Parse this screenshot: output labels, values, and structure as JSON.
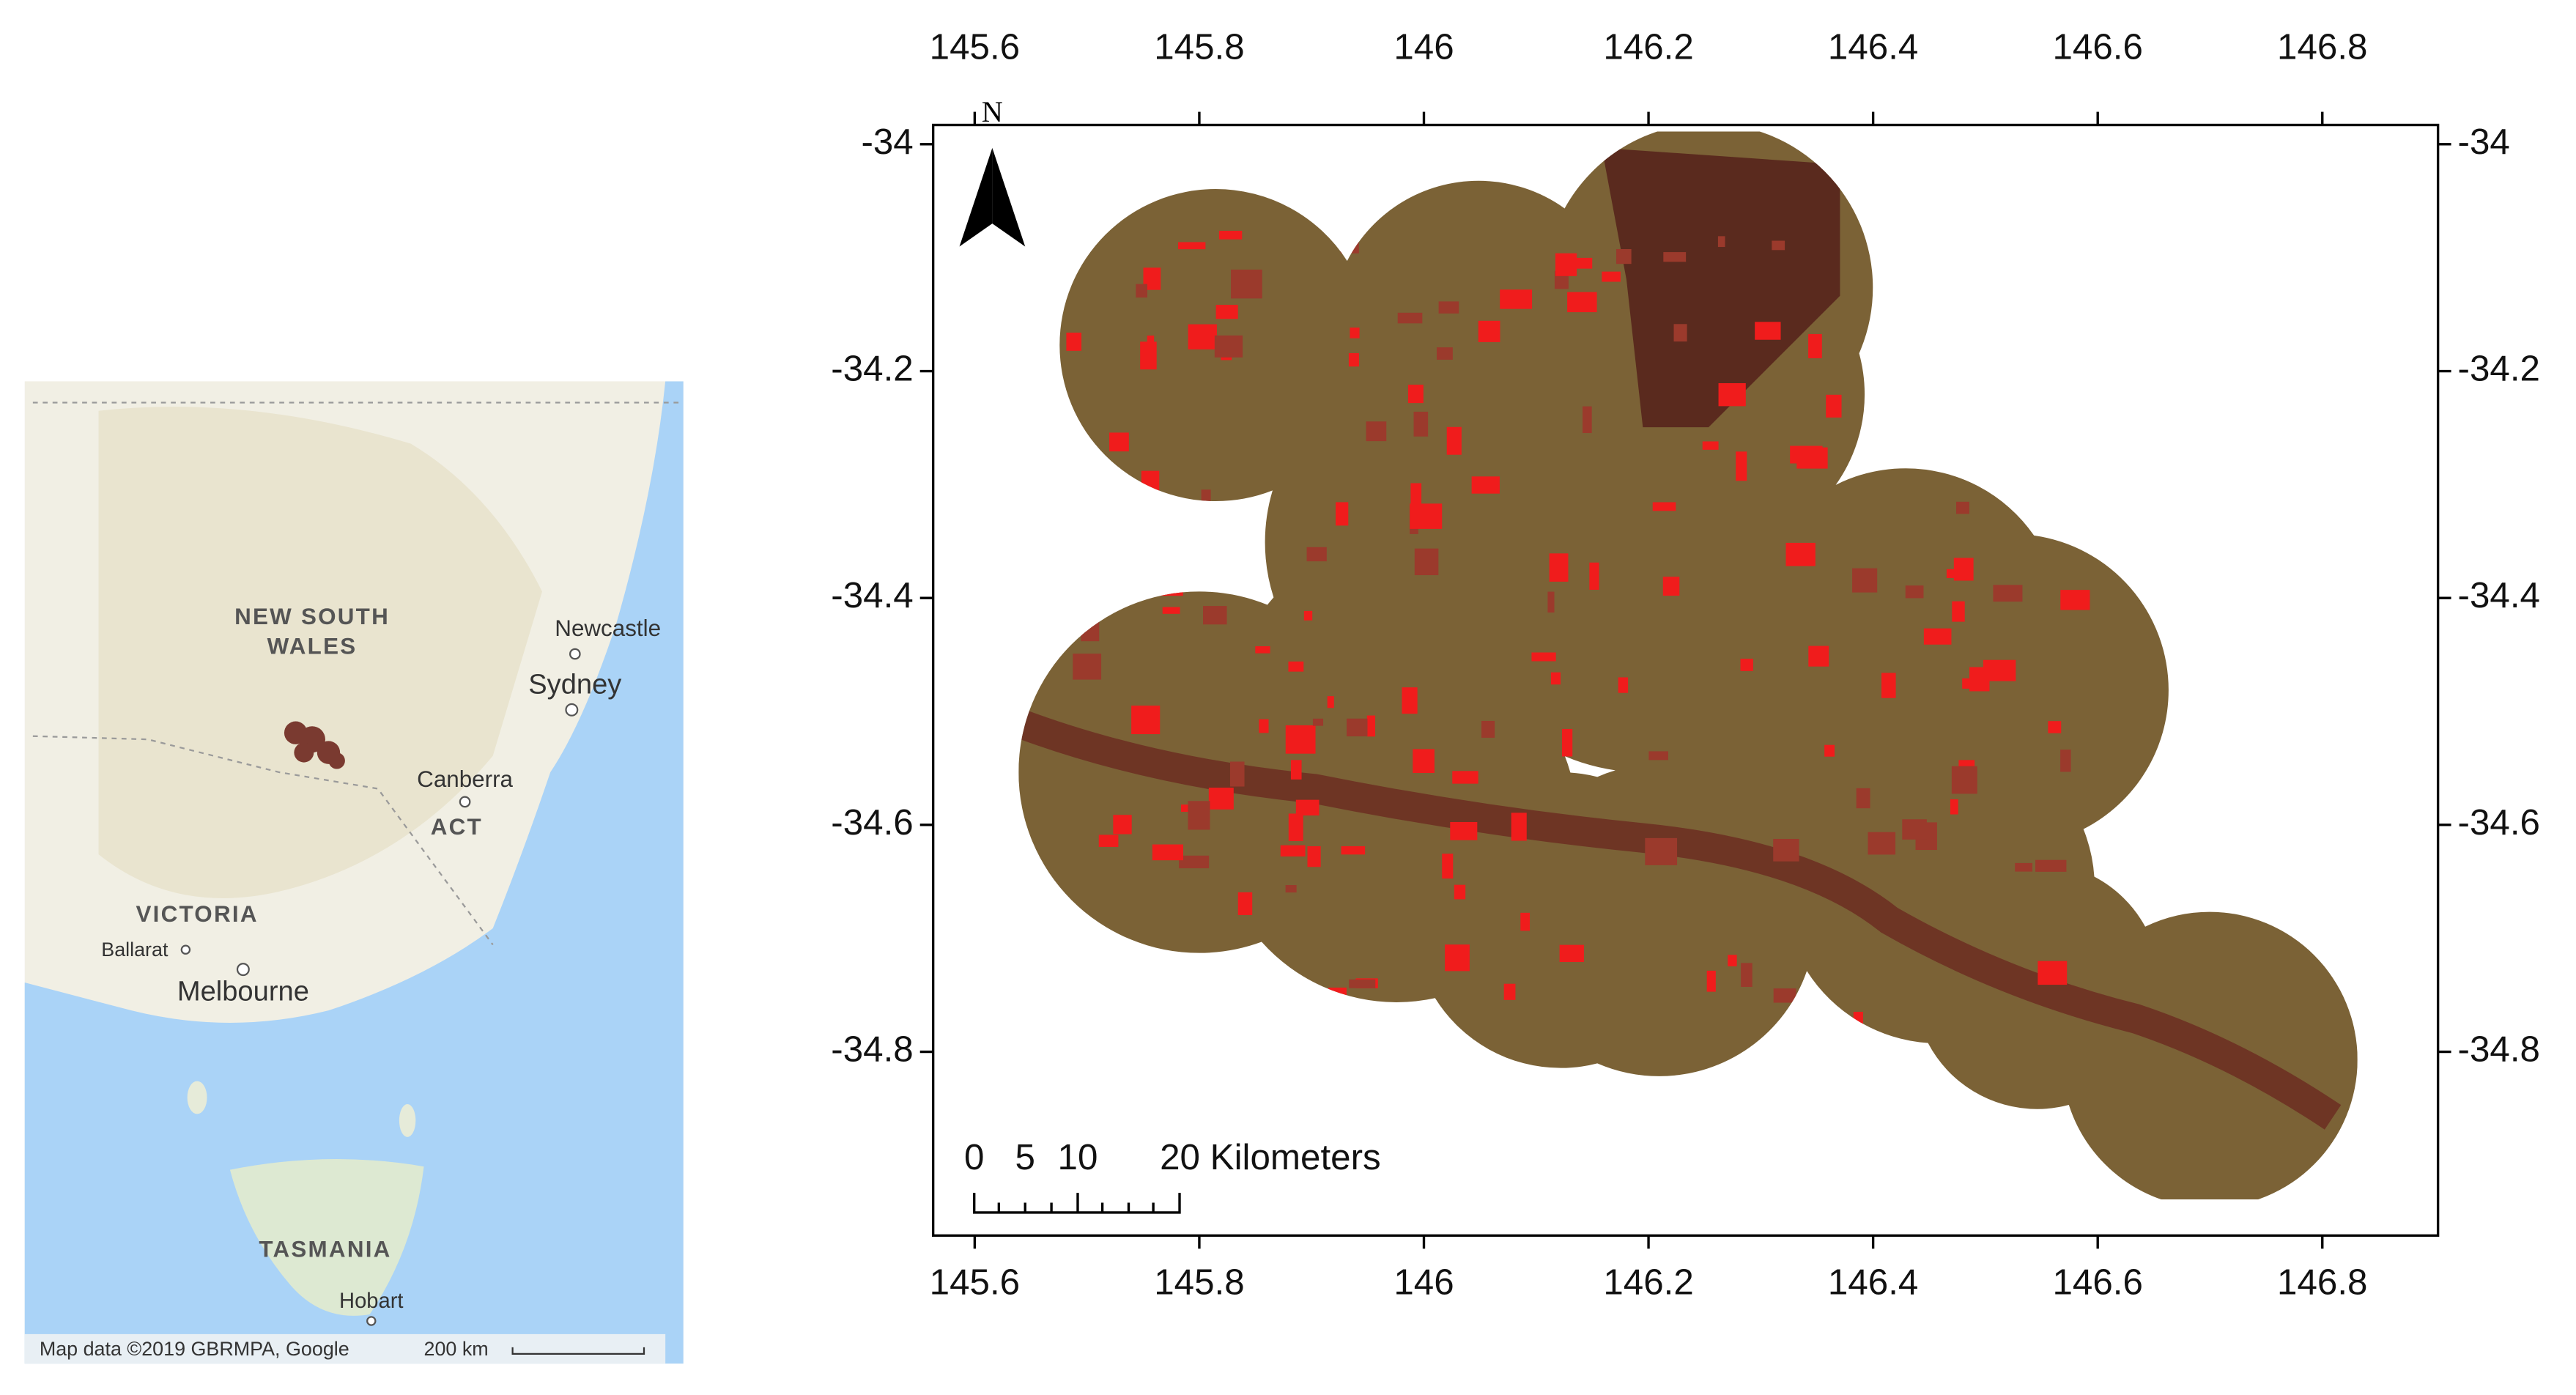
{
  "inset_map": {
    "labels": [
      "NEW SOUTH",
      "WALES",
      "Newcastle",
      "Sydney",
      "Canberra",
      "ACT",
      "VICTORIA",
      "Ballarat",
      "Melbourne",
      "TASMANIA",
      "Hobart"
    ],
    "attribution": "Map data ©2019 GBRMPA, Google",
    "scale": "200 km"
  },
  "main_map": {
    "north": "N",
    "scale_bar": [
      "0",
      "5",
      "10",
      "20 Kilometers"
    ],
    "xlim": [
      145.563,
      146.903
    ],
    "ylim": [
      -33.983,
      -34.962
    ],
    "xticks": [
      145.6,
      145.8,
      146,
      146.2,
      146.4,
      146.6,
      146.8
    ],
    "yticks": [
      -34,
      -34.2,
      -34.4,
      -34.6,
      -34.8
    ]
  }
}
